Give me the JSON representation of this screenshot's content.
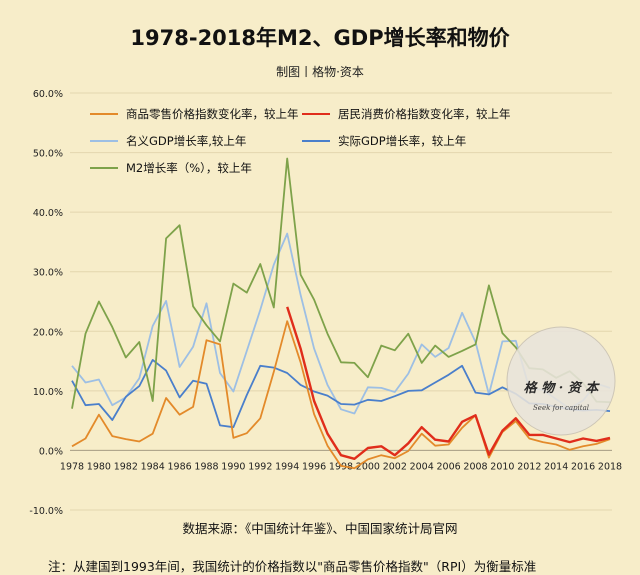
{
  "title": "1978-2018年M2、GDP增长率和物价",
  "subtitle": "制图丨格物·资本",
  "source": "数据来源：《中国统计年鉴》、中国国家统计局官网",
  "note": "注：从建国到1993年间，我国统计的价格指数以\"商品零售价格指数\"（RPI）为衡量标准",
  "watermark": {
    "line1": "格 物 · 资 本",
    "line2": "Seek for capital"
  },
  "chart_data": {
    "type": "line",
    "title": "1978-2018年M2、GDP增长率和物价",
    "ylim": [
      -10,
      60
    ],
    "y_ticks": [
      "-10.0%",
      "0.0%",
      "10.0%",
      "20.0%",
      "30.0%",
      "40.0%",
      "50.0%",
      "60.0%"
    ],
    "x_tick_labels": [
      "1978",
      "1980",
      "1982",
      "1984",
      "1986",
      "1988",
      "1990",
      "1992",
      "1994",
      "1996",
      "1998",
      "2000",
      "2002",
      "2004",
      "2006",
      "2008",
      "2010",
      "2012",
      "2014",
      "2016",
      "2018"
    ],
    "x": [
      1978,
      1979,
      1980,
      1981,
      1982,
      1983,
      1984,
      1985,
      1986,
      1987,
      1988,
      1989,
      1990,
      1991,
      1992,
      1993,
      1994,
      1995,
      1996,
      1997,
      1998,
      1999,
      2000,
      2001,
      2002,
      2003,
      2004,
      2005,
      2006,
      2007,
      2008,
      2009,
      2010,
      2011,
      2012,
      2013,
      2014,
      2015,
      2016,
      2017,
      2018
    ],
    "legend_position": "top-left",
    "grid": true,
    "series": [
      {
        "name": "商品零售价格指数变化率，较上年",
        "color": "#e38a2a",
        "values": [
          0.7,
          2.0,
          6.0,
          2.4,
          1.9,
          1.5,
          2.8,
          8.8,
          6.0,
          7.3,
          18.5,
          17.8,
          2.1,
          2.9,
          5.4,
          13.2,
          21.7,
          14.8,
          6.1,
          0.8,
          -2.6,
          -3.0,
          -1.5,
          -0.8,
          -1.3,
          -0.1,
          2.8,
          0.8,
          1.0,
          3.8,
          5.9,
          -1.2,
          3.1,
          4.9,
          2.0,
          1.4,
          1.0,
          0.1,
          0.7,
          1.1,
          1.9
        ]
      },
      {
        "name": "居民消费价格指数变化率，较上年",
        "color": "#e02d1b",
        "values": [
          null,
          null,
          null,
          null,
          null,
          null,
          null,
          null,
          null,
          null,
          null,
          null,
          null,
          null,
          null,
          null,
          24.1,
          17.1,
          8.3,
          2.8,
          -0.8,
          -1.4,
          0.4,
          0.7,
          -0.8,
          1.2,
          3.9,
          1.8,
          1.5,
          4.8,
          5.9,
          -0.7,
          3.3,
          5.4,
          2.6,
          2.6,
          2.0,
          1.4,
          2.0,
          1.6,
          2.1
        ]
      },
      {
        "name": "名义GDP增长率,较上年",
        "color": "#9dbfe4",
        "values": [
          14.2,
          11.4,
          11.9,
          7.6,
          8.9,
          12.1,
          20.9,
          25.1,
          14.0,
          17.4,
          24.7,
          13.0,
          9.9,
          16.7,
          23.6,
          31.2,
          36.4,
          26.1,
          17.1,
          11.0,
          6.9,
          6.2,
          10.6,
          10.5,
          9.8,
          12.9,
          17.8,
          15.7,
          17.2,
          23.1,
          18.2,
          9.4,
          18.3,
          18.4,
          10.4,
          10.2,
          8.6,
          7.0,
          8.4,
          11.2,
          10.5
        ]
      },
      {
        "name": "实际GDP增长率，较上年",
        "color": "#4a7fcb",
        "values": [
          11.7,
          7.6,
          7.8,
          5.1,
          9.0,
          10.8,
          15.2,
          13.4,
          8.9,
          11.7,
          11.2,
          4.2,
          3.9,
          9.3,
          14.2,
          13.9,
          13.0,
          11.0,
          9.9,
          9.2,
          7.8,
          7.7,
          8.5,
          8.3,
          9.1,
          10.0,
          10.1,
          11.4,
          12.7,
          14.2,
          9.7,
          9.4,
          10.6,
          9.5,
          7.9,
          7.8,
          7.3,
          6.9,
          6.7,
          6.8,
          6.6
        ]
      },
      {
        "name": "M2增长率（%），较上年",
        "color": "#7ea24a",
        "values": [
          7.0,
          19.6,
          25.0,
          20.7,
          15.6,
          18.2,
          8.3,
          35.6,
          37.8,
          24.2,
          21.0,
          18.3,
          28.0,
          26.5,
          31.3,
          24.0,
          49.0,
          29.5,
          25.3,
          19.6,
          14.8,
          14.7,
          12.3,
          17.6,
          16.8,
          19.6,
          14.7,
          17.6,
          15.7,
          16.7,
          17.8,
          27.7,
          19.7,
          17.3,
          13.8,
          13.6,
          12.2,
          13.3,
          11.3,
          8.2,
          8.1
        ]
      }
    ]
  }
}
